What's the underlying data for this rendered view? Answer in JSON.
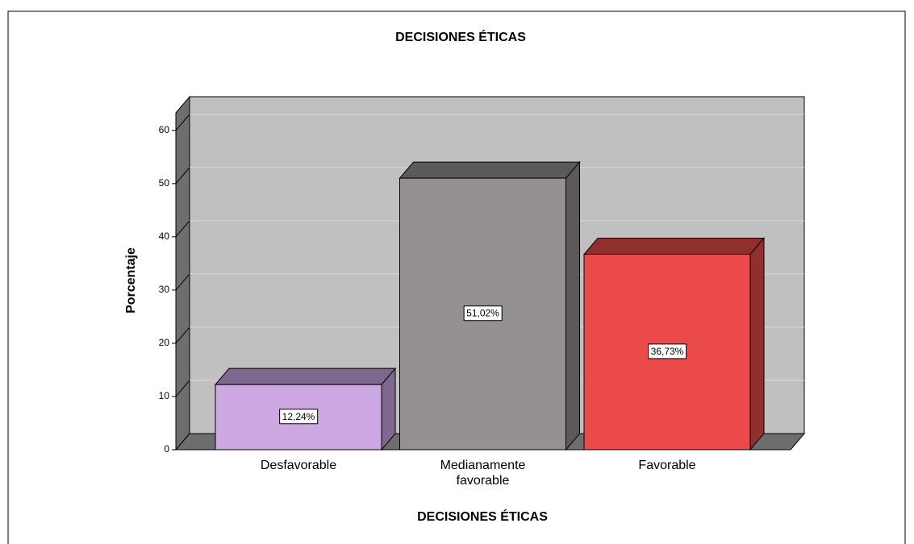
{
  "chart_data": {
    "type": "bar3d",
    "title": "DECISIONES ÉTICAS",
    "x_label": "DECISIONES ÉTICAS",
    "y_label": "Porcentaje",
    "categories": [
      "Desfavorable",
      "Medianamente favorable",
      "Favorable"
    ],
    "values": [
      12.24,
      51.02,
      36.73
    ],
    "value_labels": [
      "12,24%",
      "51,02%",
      "36,73%"
    ],
    "colors": [
      "#cda8e3",
      "#959190",
      "#ea4a4a"
    ],
    "ylim": [
      0,
      63.3
    ],
    "yticks": [
      0,
      10,
      20,
      30,
      40,
      50,
      60
    ],
    "grid": true
  }
}
